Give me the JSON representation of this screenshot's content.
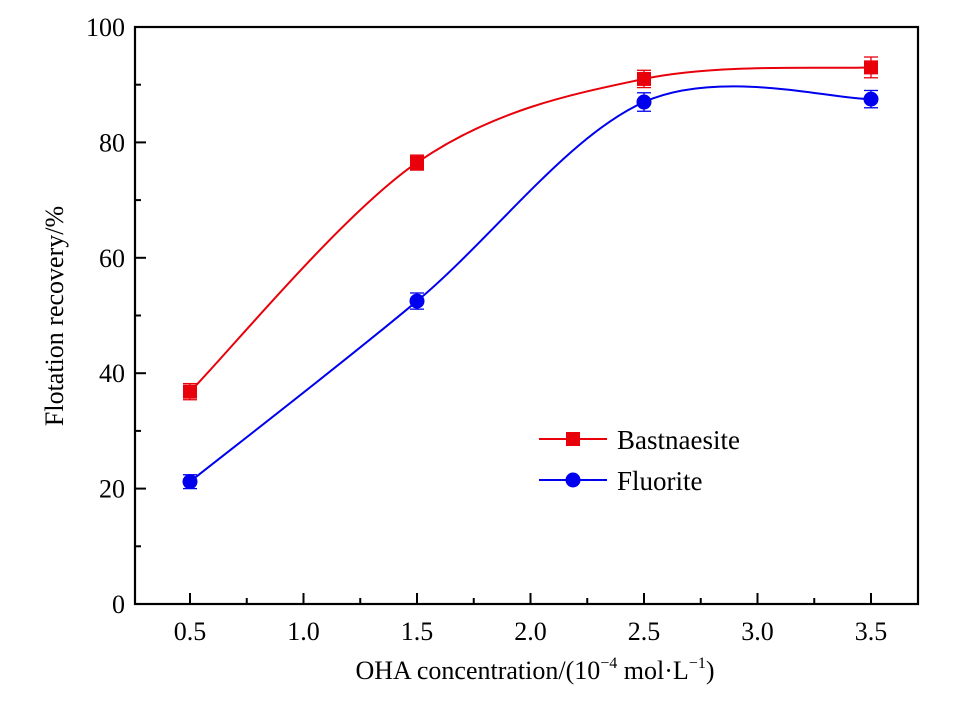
{
  "chart_data": {
    "type": "line",
    "title": "",
    "xlabel": "OHA concentration/(10⁻⁴ mol·L⁻¹)",
    "xlabel_parts": {
      "main": "OHA concentration/(10",
      "sup1": "−4",
      "mid": " mol·L",
      "sup2": "−1",
      "end": ")"
    },
    "ylabel": "Flotation recovery/%",
    "xlim": [
      0.25,
      3.78
    ],
    "ylim": [
      0,
      100
    ],
    "x_ticks": [
      0.5,
      1.0,
      1.5,
      2.0,
      2.5,
      3.0,
      3.5
    ],
    "x_tick_labels": [
      "0.5",
      "1.0",
      "1.5",
      "2.0",
      "2.5",
      "3.0",
      "3.5"
    ],
    "x_minor_ticks": [
      0.75,
      1.25,
      1.75,
      2.25,
      2.75,
      3.25
    ],
    "y_ticks": [
      0,
      20,
      40,
      60,
      80,
      100
    ],
    "y_tick_labels": [
      "0",
      "20",
      "40",
      "60",
      "80",
      "100"
    ],
    "y_minor_ticks": [
      10,
      30,
      50,
      70,
      90
    ],
    "grid": false,
    "legend_position": "center-right",
    "x": [
      0.5,
      1.5,
      2.5,
      3.5
    ],
    "series": [
      {
        "name": "Bastnaesite",
        "color": "#e8000b",
        "marker": "square",
        "values": [
          36.8,
          76.5,
          91.0,
          93.0
        ],
        "errors": [
          1.4,
          1.3,
          1.5,
          1.8
        ]
      },
      {
        "name": "Fluorite",
        "color": "#0000ee",
        "marker": "circle",
        "values": [
          21.2,
          52.5,
          87.0,
          87.5
        ],
        "errors": [
          1.2,
          1.4,
          1.6,
          1.5
        ]
      }
    ]
  }
}
